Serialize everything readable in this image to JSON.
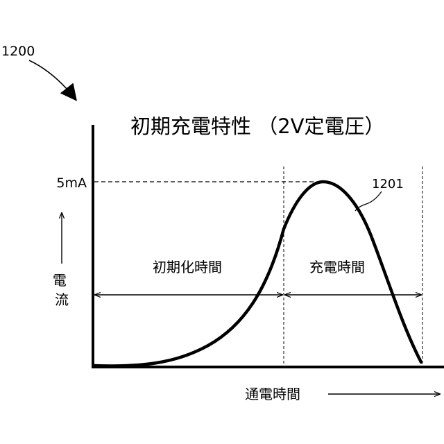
{
  "figure": {
    "ref_number": "1200",
    "title": "初期充電特性 （2V定電圧）",
    "curve_ref": "1201",
    "peak_label": "5mA",
    "y_axis_label": "電流",
    "x_axis_label": "通電時間",
    "initialization_period_label": "初期化時間",
    "charging_period_label": "充電時間"
  },
  "colors": {
    "ink": "#000000",
    "background": "#ffffff"
  }
}
